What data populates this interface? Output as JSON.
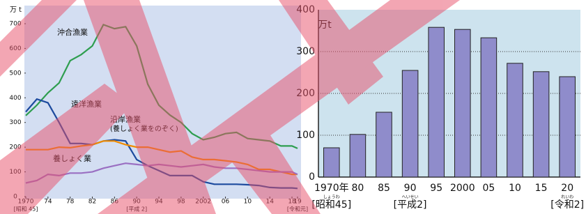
{
  "chart_data": [
    {
      "type": "line",
      "y_label": "万 t",
      "x": [
        1970,
        1972,
        1974,
        1976,
        1978,
        1980,
        1982,
        1984,
        1986,
        1988,
        1990,
        1992,
        1994,
        1996,
        1998,
        2000,
        2002,
        2004,
        2006,
        2008,
        2010,
        2012,
        2014,
        2016,
        2018,
        2019
      ],
      "xlim": [
        1970,
        2019
      ],
      "xticks": [
        1970,
        {
          "value": 1974,
          "label": "74"
        },
        {
          "value": 1978,
          "label": "78"
        },
        {
          "value": 1982,
          "label": "82"
        },
        {
          "value": 1986,
          "label": "86"
        },
        {
          "value": 1990,
          "label": "90"
        },
        {
          "value": 1994,
          "label": "94"
        },
        {
          "value": 1998,
          "label": "98"
        },
        2002,
        {
          "value": 2006,
          "label": "06"
        },
        {
          "value": 2010,
          "label": "10"
        },
        {
          "value": 2014,
          "label": "14"
        },
        {
          "value": 2018,
          "label": "18"
        },
        {
          "value": 2019,
          "label": "19"
        }
      ],
      "era_labels": [
        {
          "value": 1970,
          "label": "[昭和 45]"
        },
        {
          "value": 1990,
          "label": "[平成 2]"
        },
        {
          "value": 2019,
          "label": "[令和元]"
        }
      ],
      "ylim": [
        0,
        700
      ],
      "yticks": [
        0,
        100,
        200,
        300,
        400,
        500,
        600,
        700
      ],
      "series": [
        {
          "name": "沖合漁業",
          "color": "#2e9e4f",
          "values": [
            328,
            370,
            420,
            460,
            550,
            575,
            610,
            696,
            680,
            688,
            610,
            455,
            370,
            330,
            300,
            255,
            230,
            240,
            255,
            260,
            235,
            230,
            225,
            205,
            205,
            195
          ]
        },
        {
          "name": "遠洋漁業",
          "color": "#1c4a9e",
          "values": [
            343,
            395,
            380,
            300,
            215,
            215,
            210,
            225,
            230,
            225,
            150,
            125,
            105,
            85,
            85,
            85,
            60,
            50,
            50,
            50,
            48,
            45,
            37,
            35,
            35,
            33
          ]
        },
        {
          "name": "沿岸漁業",
          "name_note": "(養しょく業をのぞく)",
          "color": "#f08c00",
          "values": [
            190,
            190,
            190,
            200,
            198,
            205,
            210,
            225,
            225,
            210,
            200,
            200,
            190,
            180,
            185,
            160,
            150,
            150,
            145,
            140,
            130,
            110,
            110,
            100,
            90,
            90
          ]
        },
        {
          "name": "養しょく業",
          "color": "#9a6fc2",
          "values": [
            55,
            65,
            90,
            85,
            95,
            95,
            100,
            115,
            125,
            135,
            130,
            125,
            130,
            125,
            120,
            125,
            130,
            120,
            115,
            115,
            110,
            105,
            100,
            100,
            100,
            90
          ]
        }
      ]
    },
    {
      "type": "bar",
      "y_label": "万t",
      "categories": [
        "1970年",
        "80",
        "85",
        "90",
        "95",
        "2000",
        "05",
        "10",
        "15",
        "20"
      ],
      "values": [
        70,
        102,
        155,
        255,
        358,
        353,
        333,
        272,
        252,
        240
      ],
      "color": "#8f8ccb",
      "era_labels": [
        {
          "index": 0,
          "label": "[昭和45]",
          "ruby": "しょうわ"
        },
        {
          "index": 3,
          "label": "[平成2]",
          "ruby": "へいせい"
        },
        {
          "index": 9,
          "label": "[令和2]",
          "ruby": "れいわ"
        }
      ],
      "ylim": [
        0,
        400
      ],
      "yticks": [
        0,
        100,
        200,
        300,
        400
      ],
      "grid": true
    }
  ]
}
